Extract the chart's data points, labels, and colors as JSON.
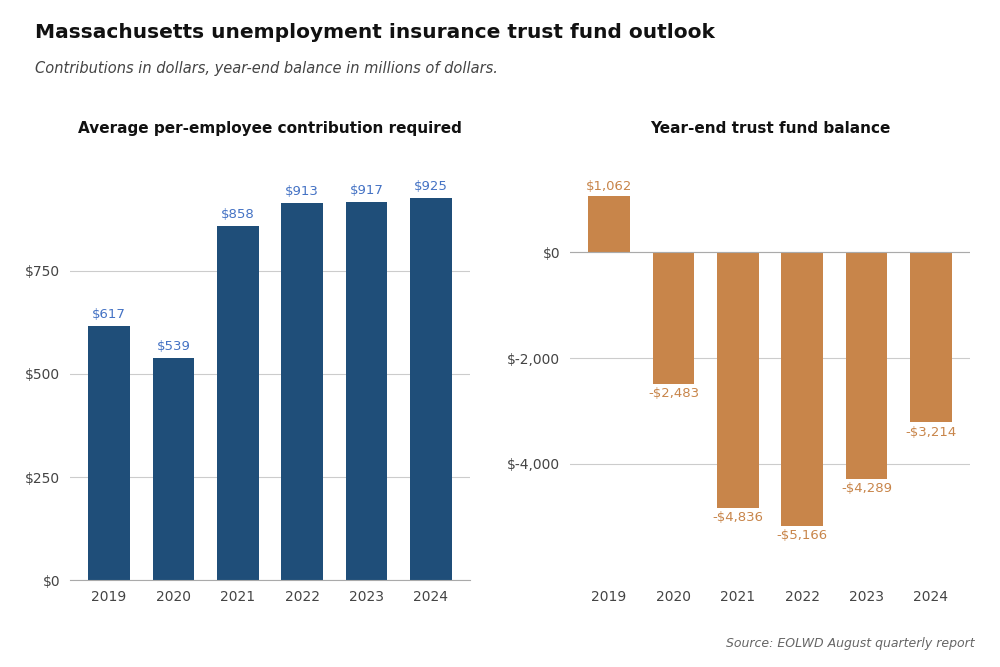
{
  "title": "Massachusetts unemployment insurance trust fund outlook",
  "subtitle": "Contributions in dollars, year-end balance in millions of dollars.",
  "left_title": "Average per-employee contribution required",
  "right_title": "Year-end trust fund balance",
  "source": "Source: EOLWD August quarterly report",
  "years": [
    "2019",
    "2020",
    "2021",
    "2022",
    "2023",
    "2024"
  ],
  "left_values": [
    617,
    539,
    858,
    913,
    917,
    925
  ],
  "left_labels": [
    "$617",
    "$539",
    "$858",
    "$913",
    "$917",
    "$925"
  ],
  "left_color": "#1f4e79",
  "left_label_color": "#4472c4",
  "left_ylim": [
    0,
    1050
  ],
  "left_yticks": [
    0,
    250,
    500,
    750
  ],
  "left_ytick_labels": [
    "$0",
    "$250",
    "$500",
    "$750"
  ],
  "right_values": [
    1062,
    -2483,
    -4836,
    -5166,
    -4289,
    -3214
  ],
  "right_labels": [
    "$1,062",
    "-$2,483",
    "-$4,836",
    "-$5,166",
    "-$4,289",
    "-$3,214"
  ],
  "right_color": "#c8854a",
  "right_label_color": "#c8854a",
  "right_ylim": [
    -6200,
    2000
  ],
  "right_yticks": [
    0,
    -2000,
    -4000
  ],
  "right_ytick_labels": [
    "$0",
    "$-2,000",
    "$-4,000"
  ],
  "background_color": "#ffffff",
  "grid_color": "#cccccc"
}
